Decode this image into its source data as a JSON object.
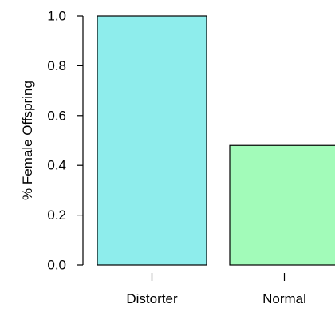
{
  "chart_data": {
    "type": "bar",
    "title": "",
    "xlabel": "",
    "ylabel": "% Female Offspring",
    "categories": [
      "Distorter",
      "Normal"
    ],
    "values": [
      1.0,
      0.48
    ],
    "colors": [
      "#8EEDEC",
      "#A2FBB9"
    ],
    "ylim": [
      0.0,
      1.0
    ],
    "yticks": [
      "0.0",
      "0.2",
      "0.4",
      "0.6",
      "0.8",
      "1.0"
    ],
    "grid": false,
    "legend": "none"
  }
}
